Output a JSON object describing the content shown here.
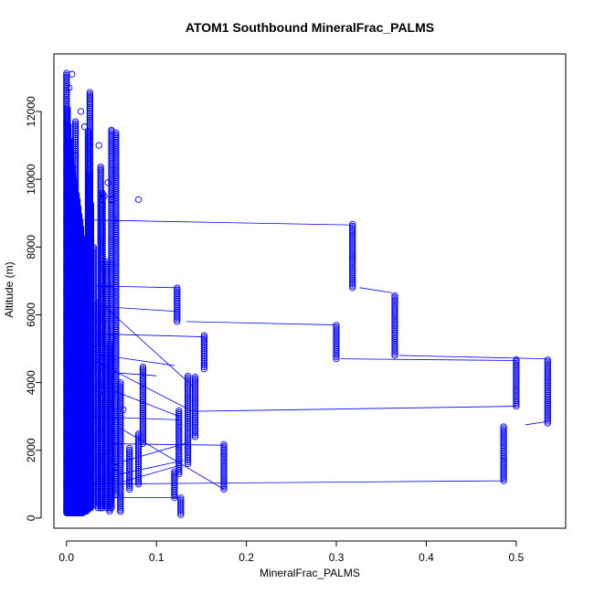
{
  "chart_data": {
    "type": "scatter",
    "title": "ATOM1 Southbound MineralFrac_PALMS",
    "xlabel": "MineralFrac_PALMS",
    "ylabel": "Altitude (m)",
    "xlim": [
      -0.014,
      0.555
    ],
    "ylim": [
      -300,
      13700
    ],
    "x_ticks": [
      0,
      0.1,
      0.2,
      0.3,
      0.4,
      0.5
    ],
    "x_tick_labels": [
      "0.0",
      "0.1",
      "0.2",
      "0.3",
      "0.4",
      "0.5"
    ],
    "y_ticks": [
      0,
      2000,
      4000,
      6000,
      8000,
      10000,
      12000
    ],
    "y_tick_labels": [
      "0",
      "2000",
      "4000",
      "6000",
      "8000",
      "10000",
      "12000"
    ],
    "grid": false,
    "legend": "none",
    "series": [
      {
        "color": "#0000ff",
        "marker": "open-circle",
        "line": true,
        "columns": [
          [
            0.0,
            150,
            13150
          ],
          [
            0.001,
            150,
            12100
          ],
          [
            0.002,
            150,
            11600
          ],
          [
            0.003,
            150,
            11200
          ],
          [
            0.004,
            150,
            10900
          ],
          [
            0.005,
            150,
            10600
          ],
          [
            0.006,
            150,
            10400
          ],
          [
            0.007,
            150,
            10200
          ],
          [
            0.008,
            150,
            10000
          ],
          [
            0.009,
            150,
            9800
          ],
          [
            0.01,
            150,
            11700
          ],
          [
            0.011,
            150,
            9600
          ],
          [
            0.012,
            150,
            9400
          ],
          [
            0.013,
            150,
            9200
          ],
          [
            0.014,
            150,
            9000
          ],
          [
            0.015,
            150,
            8800
          ],
          [
            0.016,
            150,
            8600
          ],
          [
            0.017,
            150,
            8300
          ],
          [
            0.018,
            150,
            8000
          ],
          [
            0.019,
            200,
            7700
          ],
          [
            0.02,
            200,
            7400
          ],
          [
            0.021,
            200,
            7000
          ],
          [
            0.022,
            200,
            6600
          ],
          [
            0.023,
            250,
            6200
          ],
          [
            0.024,
            250,
            11450
          ],
          [
            0.025,
            300,
            10200
          ],
          [
            0.026,
            300,
            12600
          ],
          [
            0.027,
            300,
            9300
          ],
          [
            0.03,
            400,
            8000
          ],
          [
            0.035,
            300,
            6400
          ],
          [
            0.038,
            300,
            10400
          ],
          [
            0.04,
            300,
            9600
          ],
          [
            0.045,
            300,
            7600
          ],
          [
            0.048,
            200,
            5200
          ],
          [
            0.05,
            300,
            11450
          ],
          [
            0.055,
            700,
            11400
          ],
          [
            0.06,
            200,
            4000
          ],
          [
            0.07,
            850,
            2100
          ],
          [
            0.08,
            1000,
            2500
          ],
          [
            0.085,
            2200,
            4500
          ],
          [
            0.12,
            600,
            1400
          ],
          [
            0.123,
            5800,
            6800
          ],
          [
            0.125,
            1300,
            3200
          ],
          [
            0.127,
            100,
            600
          ],
          [
            0.135,
            1600,
            4200
          ],
          [
            0.143,
            2400,
            4200
          ],
          [
            0.153,
            4400,
            5400
          ],
          [
            0.175,
            850,
            2200
          ],
          [
            0.3,
            4700,
            5700
          ],
          [
            0.318,
            6800,
            8700
          ],
          [
            0.365,
            4800,
            6600
          ],
          [
            0.486,
            1100,
            2700
          ],
          [
            0.5,
            3300,
            4700
          ],
          [
            0.535,
            2800,
            4700
          ]
        ],
        "dense_points": [
          [
            0.05,
            9400
          ],
          [
            0.08,
            9400
          ],
          [
            0.042,
            9500
          ],
          [
            0.012,
            8400
          ],
          [
            0.016,
            12000
          ],
          [
            0.006,
            13100
          ],
          [
            0.003,
            12700
          ],
          [
            0.06,
            200
          ],
          [
            0.04,
            9250
          ],
          [
            0.046,
            9900
          ],
          [
            0.02,
            11550
          ],
          [
            0.036,
            11000
          ],
          [
            0.05,
            11450
          ],
          [
            0.01,
            10700
          ],
          [
            0.025,
            2200
          ],
          [
            0.035,
            3000
          ],
          [
            0.04,
            3800
          ],
          [
            0.055,
            1500
          ],
          [
            0.063,
            3200
          ],
          [
            0.03,
            5000
          ]
        ],
        "segments": [
          [
            0.02,
            8800,
            0.318,
            8650
          ],
          [
            0.033,
            6850,
            0.122,
            6800
          ],
          [
            0.035,
            6250,
            0.122,
            6100
          ],
          [
            0.015,
            5450,
            0.153,
            5350
          ],
          [
            0.133,
            5800,
            0.3,
            5700
          ],
          [
            0.326,
            6800,
            0.362,
            6650
          ],
          [
            0.049,
            4300,
            0.1,
            4200
          ],
          [
            0.305,
            4700,
            0.5,
            4650
          ],
          [
            0.37,
            4800,
            0.534,
            4700
          ],
          [
            0.142,
            3150,
            0.5,
            3300
          ],
          [
            0.51,
            2750,
            0.534,
            2850
          ],
          [
            0.027,
            4700,
            0.14,
            3150
          ],
          [
            0.04,
            6300,
            0.14,
            3900
          ],
          [
            0.048,
            3800,
            0.125,
            3000
          ],
          [
            0.024,
            2200,
            0.175,
            2150
          ],
          [
            0.06,
            1650,
            0.132,
            2200
          ],
          [
            0.06,
            1050,
            0.125,
            1550
          ],
          [
            0.06,
            1300,
            0.13,
            1700
          ],
          [
            0.024,
            1000,
            0.486,
            1100
          ],
          [
            0.02,
            600,
            0.127,
            600
          ],
          [
            0.06,
            2650,
            0.175,
            850
          ],
          [
            0.02,
            3000,
            0.125,
            2900
          ],
          [
            0.015,
            4900,
            0.12,
            4500
          ]
        ]
      }
    ]
  }
}
